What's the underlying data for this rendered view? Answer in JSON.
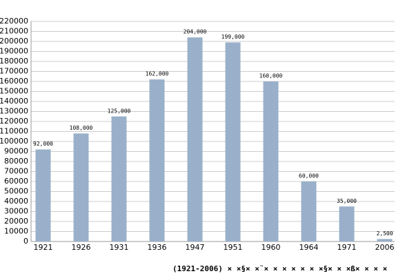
{
  "chart_data": {
    "type": "bar",
    "title": "(1921-2006) × ×§× ×¨× × × × × ×  ×§× × ×ß× × × ×",
    "categories": [
      "1921",
      "1926",
      "1931",
      "1936",
      "1947",
      "1951",
      "1960",
      "1964",
      "1971",
      "2006"
    ],
    "values": [
      92000,
      108000,
      125000,
      162000,
      204000,
      199000,
      160000,
      60000,
      35000,
      2500
    ],
    "value_labels": [
      "92,000",
      "108,000",
      "125,000",
      "162,000",
      "204,000",
      "199,000",
      "160,000",
      "60,000",
      "35,000",
      "2,500"
    ],
    "color": "#9ab0ca",
    "ylim": [
      0,
      220000
    ],
    "yticks": [
      0,
      10000,
      20000,
      30000,
      40000,
      50000,
      60000,
      70000,
      80000,
      90000,
      100000,
      110000,
      120000,
      130000,
      140000,
      150000,
      160000,
      170000,
      180000,
      190000,
      200000,
      210000,
      220000
    ],
    "grid": true
  }
}
